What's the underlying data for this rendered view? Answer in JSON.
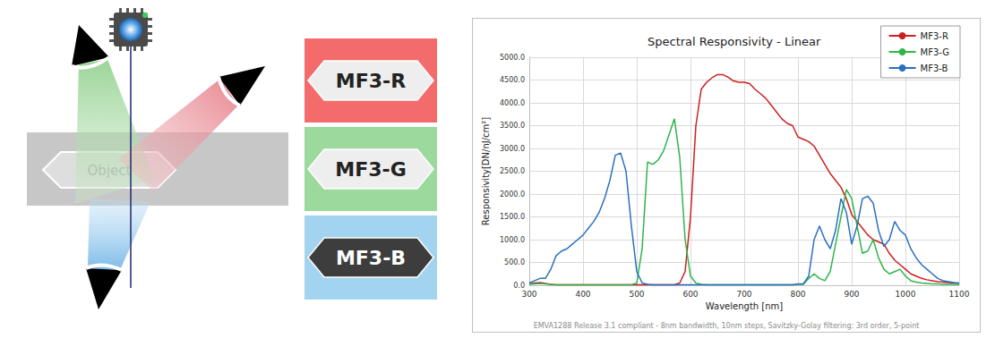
{
  "diagram": {
    "object_label": "Object"
  },
  "filters": [
    {
      "label": "MF3-R",
      "color": "#f46b6b"
    },
    {
      "label": "MF3-G",
      "color": "#9bd99c"
    },
    {
      "label": "MF3-B",
      "color": "#a3d4ef"
    }
  ],
  "chart_data": {
    "type": "line",
    "title": "Spectral Responsivity - Linear",
    "x_label": "Wavelength [nm]",
    "y_label": "Responsivity[DN/nJ/cm²]",
    "annotations": [
      "EMVA1288 Release 3.1 compliant - 8nm bandwidth, 10nm steps, Savitzky-Golay filtering: 3rd order, 5-point"
    ],
    "x": [
      300,
      310,
      320,
      330,
      340,
      350,
      360,
      370,
      380,
      390,
      400,
      410,
      420,
      430,
      440,
      450,
      460,
      470,
      480,
      490,
      500,
      510,
      520,
      530,
      540,
      550,
      560,
      570,
      580,
      590,
      600,
      610,
      620,
      630,
      640,
      650,
      660,
      670,
      680,
      690,
      700,
      710,
      720,
      730,
      740,
      750,
      760,
      770,
      780,
      790,
      800,
      810,
      820,
      830,
      840,
      850,
      860,
      870,
      880,
      890,
      900,
      910,
      920,
      930,
      940,
      950,
      960,
      970,
      980,
      990,
      1000,
      1010,
      1020,
      1030,
      1040,
      1050,
      1060,
      1070,
      1080,
      1090,
      1100
    ],
    "series": [
      {
        "name": "MF3-R",
        "color": "#cc1f1f",
        "values": [
          30,
          50,
          60,
          40,
          20,
          10,
          10,
          10,
          10,
          10,
          10,
          10,
          10,
          10,
          10,
          10,
          10,
          10,
          10,
          10,
          10,
          10,
          10,
          10,
          10,
          10,
          10,
          10,
          50,
          300,
          1500,
          3500,
          4300,
          4450,
          4550,
          4620,
          4620,
          4560,
          4480,
          4450,
          4450,
          4420,
          4300,
          4200,
          4100,
          3950,
          3800,
          3650,
          3550,
          3500,
          3250,
          3200,
          3150,
          3050,
          2850,
          2650,
          2450,
          2300,
          2150,
          1900,
          1550,
          1400,
          1250,
          1100,
          1000,
          950,
          900,
          700,
          550,
          450,
          350,
          250,
          200,
          150,
          120,
          100,
          80,
          70,
          60,
          50,
          40
        ]
      },
      {
        "name": "MF3-G",
        "color": "#2fb54a",
        "values": [
          20,
          30,
          40,
          30,
          20,
          10,
          10,
          10,
          10,
          10,
          10,
          10,
          10,
          10,
          10,
          10,
          10,
          10,
          10,
          10,
          50,
          800,
          2700,
          2650,
          2750,
          2950,
          3300,
          3650,
          2800,
          1000,
          200,
          50,
          20,
          10,
          10,
          10,
          10,
          10,
          10,
          10,
          10,
          10,
          10,
          10,
          10,
          10,
          10,
          10,
          10,
          10,
          20,
          20,
          150,
          250,
          150,
          100,
          300,
          900,
          1500,
          2100,
          1900,
          1300,
          700,
          750,
          1000,
          600,
          350,
          250,
          300,
          350,
          200,
          100,
          70,
          50,
          40,
          30,
          30,
          20,
          20,
          20,
          20
        ]
      },
      {
        "name": "MF3-B",
        "color": "#2a6fc0",
        "values": [
          50,
          100,
          150,
          150,
          350,
          650,
          750,
          800,
          900,
          1000,
          1100,
          1250,
          1400,
          1600,
          1900,
          2300,
          2850,
          2900,
          2500,
          1300,
          300,
          50,
          20,
          10,
          10,
          10,
          10,
          10,
          10,
          10,
          10,
          10,
          10,
          10,
          10,
          10,
          10,
          10,
          10,
          10,
          10,
          10,
          10,
          10,
          10,
          10,
          10,
          10,
          10,
          10,
          30,
          30,
          200,
          1000,
          1300,
          1000,
          800,
          1200,
          1900,
          1600,
          900,
          1300,
          1900,
          1950,
          1800,
          1200,
          850,
          1000,
          1400,
          1200,
          1100,
          800,
          600,
          450,
          350,
          250,
          150,
          100,
          80,
          60,
          50
        ]
      }
    ],
    "xlim": [
      300,
      1100
    ],
    "xticks": [
      300,
      400,
      500,
      600,
      700,
      800,
      900,
      1000,
      1100
    ],
    "ylim": [
      0,
      5000
    ],
    "yticks": [
      {
        "value": 0,
        "label": "0.0"
      },
      {
        "value": 500,
        "label": "500.0"
      },
      {
        "value": 1000,
        "label": "1000.0"
      },
      {
        "value": 1500,
        "label": "1500.0"
      },
      {
        "value": 2000,
        "label": "2000.0"
      },
      {
        "value": 2500,
        "label": "2500.0"
      },
      {
        "value": 3000,
        "label": "3000.0"
      },
      {
        "value": 3500,
        "label": "3500.0"
      },
      {
        "value": 4000,
        "label": "4000.0"
      },
      {
        "value": 4500,
        "label": "4500.0"
      },
      {
        "value": 5000,
        "label": "5000.0"
      }
    ],
    "grid": true,
    "legend": "upper right"
  }
}
